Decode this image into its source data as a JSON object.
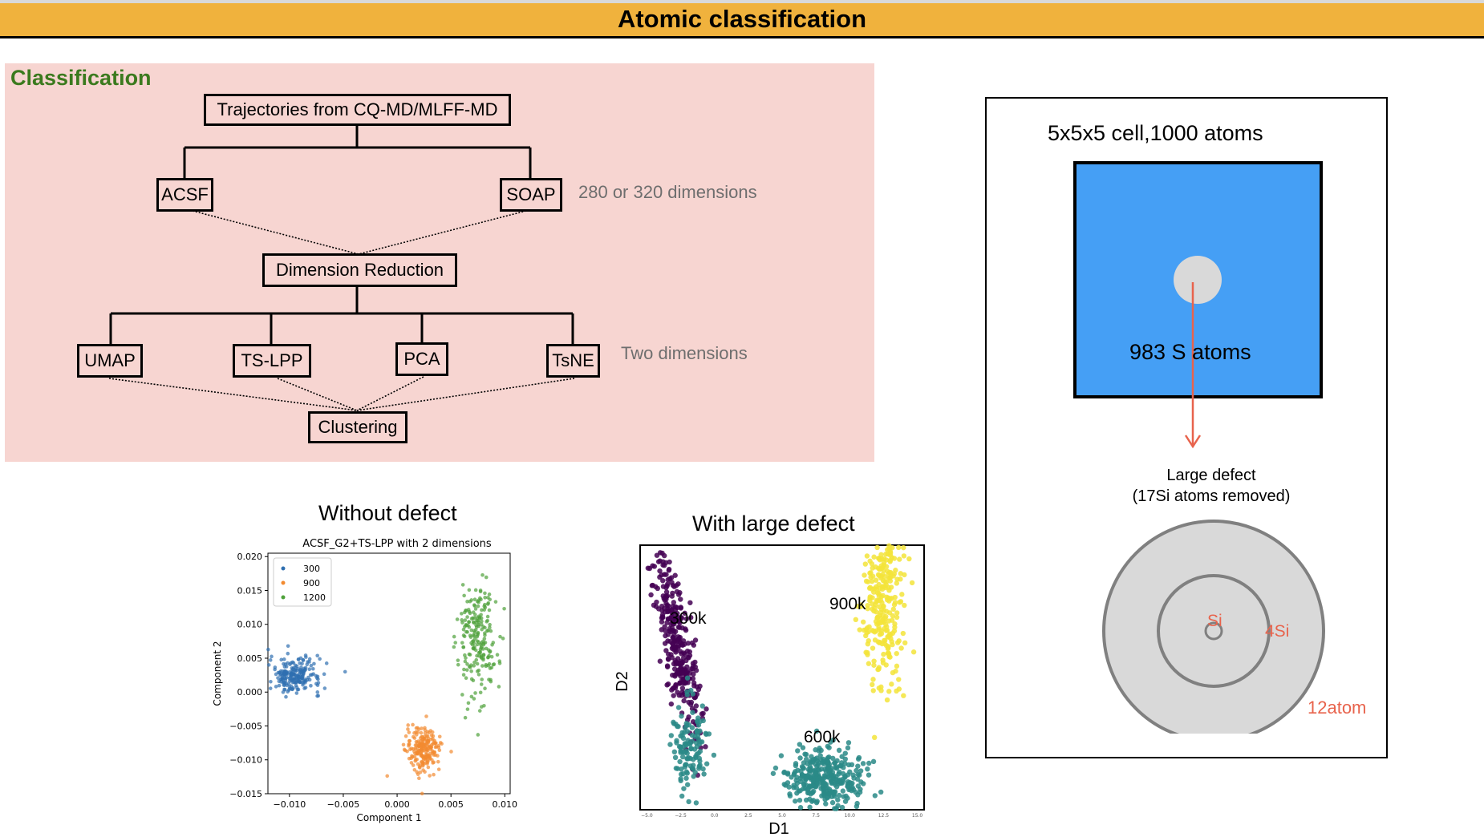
{
  "header": {
    "title": "Atomic classification",
    "bar_color": "#f0b23d"
  },
  "classification": {
    "heading": "Classification",
    "trajectories": "Trajectories from CQ-MD/MLFF-MD",
    "descriptors": [
      "ACSF",
      "SOAP"
    ],
    "descriptor_note": "280 or 320 dimensions",
    "reduction": "Dimension Reduction",
    "methods": [
      "UMAP",
      "TS-LPP",
      "PCA",
      "TsNE"
    ],
    "methods_note": "Two dimensions",
    "clustering": "Clustering",
    "panel_color": "#f7d5d1"
  },
  "without_defect": {
    "caption": "Without defect",
    "chart_data": {
      "type": "scatter",
      "title": "ACSF_G2+TS-LPP with 2 dimensions",
      "xlabel": "Component 1",
      "ylabel": "Component 2",
      "xlim": [
        -0.012,
        0.0105
      ],
      "ylim": [
        -0.015,
        0.0205
      ],
      "xticks": [
        "−0.010",
        "−0.005",
        "0.000",
        "0.005",
        "0.010"
      ],
      "yticks": [
        "0.020",
        "0.015",
        "0.010",
        "0.005",
        "0.000",
        "−0.005",
        "−0.010",
        "−0.015"
      ],
      "legend_position": "top-left",
      "series": [
        {
          "name": "300",
          "color": "#2f6fb0",
          "center": [
            -0.0095,
            0.0025
          ],
          "spread": [
            0.0012,
            0.0013
          ]
        },
        {
          "name": "900",
          "color": "#f28a30",
          "center": [
            0.0025,
            -0.0085
          ],
          "spread": [
            0.0008,
            0.0016
          ]
        },
        {
          "name": "1200",
          "color": "#4ea13a",
          "center": [
            0.0075,
            0.008
          ],
          "spread": [
            0.0009,
            0.0045
          ]
        }
      ]
    }
  },
  "with_defect": {
    "caption": "With large defect",
    "chart_data": {
      "type": "scatter",
      "xlabel": "D1",
      "ylabel": "D2",
      "xlim": [
        -5.5,
        15.5
      ],
      "ylim": [
        -3,
        12
      ],
      "xticks": [
        "−5.0",
        "−2.5",
        "0.0",
        "2.5",
        "5.0",
        "7.5",
        "10.0",
        "12.5",
        "15.0"
      ],
      "series": [
        {
          "name": "300k",
          "color": "#440154",
          "center": [
            -2.8,
            6.5
          ],
          "spread": [
            0.9,
            2.8
          ]
        },
        {
          "name": "300k",
          "color": "#2a8a87",
          "center": [
            -1.8,
            0.5
          ],
          "spread": [
            0.6,
            1.4
          ]
        },
        {
          "name": "900k",
          "color": "#f3e43a",
          "center": [
            12.5,
            9.5
          ],
          "spread": [
            0.8,
            2.8
          ]
        },
        {
          "name": "600k",
          "color": "#2a8a87",
          "center": [
            8.2,
            -1.2
          ],
          "spread": [
            1.4,
            0.8
          ]
        }
      ],
      "labels": [
        "300k",
        "900k",
        "600k"
      ]
    }
  },
  "cell": {
    "title": "5x5x5 cell,1000 atoms",
    "inner_label": "983 S  atoms",
    "box_color": "#459ff5",
    "arrow_color": "#e8634c",
    "defect_title": "Large defect",
    "defect_subtitle": "(17Si atoms removed)",
    "center_label": "Si",
    "middle_label": "4Si",
    "outer_label": "12atom"
  }
}
